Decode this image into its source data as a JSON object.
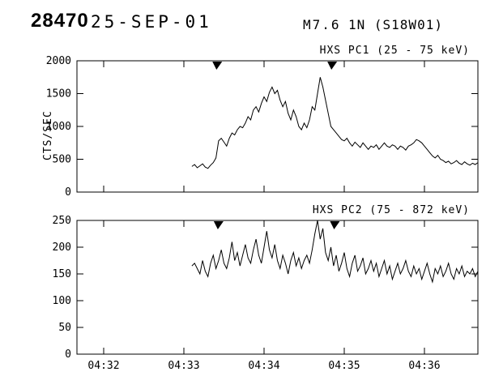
{
  "header": {
    "event_number": "28470",
    "date": "25-SEP-01",
    "flare_class": "M7.6",
    "importance_location": "1N (S18W01)"
  },
  "chart_data": [
    {
      "type": "line",
      "title": "HXS PC1 (25 - 75 keV)",
      "ylabel": "CTS/SEC",
      "xlabel": "",
      "ylim": [
        0,
        2000
      ],
      "yticks": [
        0,
        500,
        1000,
        1500,
        2000
      ],
      "ytick_labels": [
        "0",
        "500",
        "1000",
        "1500",
        "2000"
      ],
      "xlim_seconds": [
        100,
        400
      ],
      "xticks_seconds": [
        120,
        180,
        240,
        300,
        360
      ],
      "xtick_labels": [
        "04:32",
        "04:33",
        "04:34",
        "04:35",
        "04:36"
      ],
      "marker_seconds": [
        205,
        291
      ],
      "x_seconds": [
        186,
        188,
        190,
        192,
        194,
        196,
        198,
        200,
        202,
        204,
        206,
        208,
        210,
        212,
        214,
        216,
        218,
        220,
        222,
        224,
        226,
        228,
        230,
        232,
        234,
        236,
        238,
        240,
        242,
        244,
        246,
        248,
        250,
        252,
        254,
        256,
        258,
        260,
        262,
        264,
        266,
        268,
        270,
        272,
        274,
        276,
        278,
        280,
        282,
        284,
        286,
        288,
        290,
        292,
        294,
        296,
        298,
        300,
        302,
        304,
        306,
        308,
        310,
        312,
        314,
        316,
        318,
        320,
        322,
        324,
        326,
        328,
        330,
        332,
        334,
        336,
        338,
        340,
        342,
        344,
        346,
        348,
        350,
        352,
        354,
        356,
        358,
        360,
        362,
        364,
        366,
        368,
        370,
        372,
        374,
        376,
        378,
        380,
        382,
        384,
        386,
        388,
        390,
        392,
        394,
        396,
        398,
        400
      ],
      "values": [
        390,
        420,
        370,
        400,
        430,
        380,
        360,
        410,
        450,
        520,
        780,
        820,
        760,
        700,
        820,
        900,
        870,
        950,
        1000,
        980,
        1050,
        1150,
        1100,
        1250,
        1300,
        1220,
        1350,
        1450,
        1380,
        1520,
        1600,
        1500,
        1550,
        1400,
        1300,
        1380,
        1200,
        1100,
        1250,
        1150,
        1000,
        950,
        1050,
        980,
        1100,
        1300,
        1250,
        1500,
        1750,
        1600,
        1400,
        1200,
        1000,
        950,
        900,
        850,
        800,
        780,
        820,
        750,
        700,
        760,
        720,
        680,
        750,
        700,
        650,
        700,
        680,
        720,
        650,
        700,
        750,
        700,
        680,
        720,
        700,
        650,
        700,
        680,
        640,
        700,
        720,
        750,
        800,
        780,
        750,
        700,
        650,
        600,
        550,
        520,
        560,
        500,
        480,
        450,
        470,
        430,
        450,
        480,
        440,
        420,
        460,
        430,
        410,
        440,
        420,
        450
      ]
    },
    {
      "type": "line",
      "title": "HXS PC2 (75 - 872 keV)",
      "ylabel": "",
      "xlabel": "",
      "ylim": [
        0,
        250
      ],
      "yticks": [
        0,
        50,
        100,
        150,
        200,
        250
      ],
      "ytick_labels": [
        "0",
        "50",
        "100",
        "150",
        "200",
        "250"
      ],
      "xlim_seconds": [
        100,
        400
      ],
      "xticks_seconds": [
        120,
        180,
        240,
        300,
        360
      ],
      "xtick_labels": [
        "04:32",
        "04:33",
        "04:34",
        "04:35",
        "04:36"
      ],
      "marker_seconds": [
        206,
        293
      ],
      "x_seconds": [
        186,
        188,
        190,
        192,
        194,
        196,
        198,
        200,
        202,
        204,
        206,
        208,
        210,
        212,
        214,
        216,
        218,
        220,
        222,
        224,
        226,
        228,
        230,
        232,
        234,
        236,
        238,
        240,
        242,
        244,
        246,
        248,
        250,
        252,
        254,
        256,
        258,
        260,
        262,
        264,
        266,
        268,
        270,
        272,
        274,
        276,
        278,
        280,
        282,
        284,
        286,
        288,
        290,
        292,
        294,
        296,
        298,
        300,
        302,
        304,
        306,
        308,
        310,
        312,
        314,
        316,
        318,
        320,
        322,
        324,
        326,
        328,
        330,
        332,
        334,
        336,
        338,
        340,
        342,
        344,
        346,
        348,
        350,
        352,
        354,
        356,
        358,
        360,
        362,
        364,
        366,
        368,
        370,
        372,
        374,
        376,
        378,
        380,
        382,
        384,
        386,
        388,
        390,
        392,
        394,
        396,
        398,
        400
      ],
      "values": [
        165,
        170,
        160,
        150,
        175,
        155,
        145,
        170,
        185,
        160,
        175,
        195,
        170,
        160,
        180,
        210,
        175,
        190,
        165,
        185,
        205,
        180,
        170,
        195,
        215,
        185,
        170,
        200,
        230,
        195,
        180,
        205,
        175,
        160,
        185,
        170,
        150,
        175,
        190,
        165,
        180,
        160,
        175,
        185,
        170,
        195,
        225,
        250,
        215,
        235,
        190,
        175,
        200,
        165,
        185,
        155,
        170,
        190,
        160,
        145,
        170,
        185,
        155,
        165,
        180,
        150,
        160,
        175,
        155,
        170,
        145,
        160,
        175,
        150,
        165,
        140,
        155,
        170,
        150,
        160,
        175,
        155,
        145,
        165,
        150,
        160,
        140,
        155,
        170,
        150,
        135,
        160,
        150,
        165,
        145,
        155,
        170,
        150,
        140,
        160,
        150,
        165,
        145,
        155,
        150,
        160,
        145,
        155
      ]
    }
  ],
  "colors": {
    "line": "#000000",
    "background": "#ffffff"
  }
}
